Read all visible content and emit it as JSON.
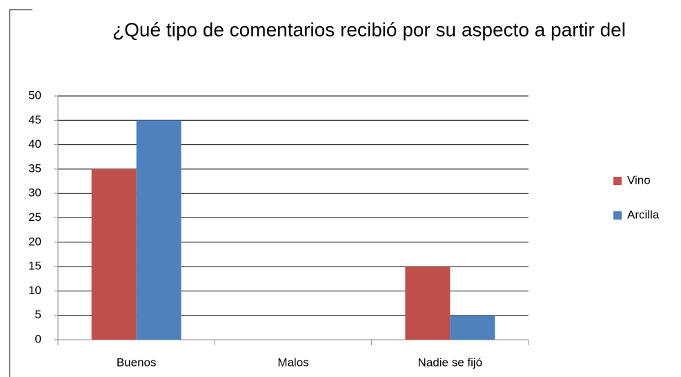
{
  "chart_data": {
    "type": "bar",
    "title": "¿Qué tipo de comentarios recibió por su aspecto a partir del",
    "categories": [
      "Buenos",
      "Malos",
      "Nadie se fijó"
    ],
    "series": [
      {
        "name": "Vino",
        "color": "#c0504d",
        "values": [
          35,
          0,
          15
        ]
      },
      {
        "name": "Arcilla",
        "color": "#4f81bd",
        "values": [
          45,
          0,
          5
        ]
      }
    ],
    "ylim": [
      0,
      50
    ],
    "yticks": [
      0,
      5,
      10,
      15,
      20,
      25,
      30,
      35,
      40,
      45,
      50
    ],
    "grid": true,
    "legend": "right"
  }
}
